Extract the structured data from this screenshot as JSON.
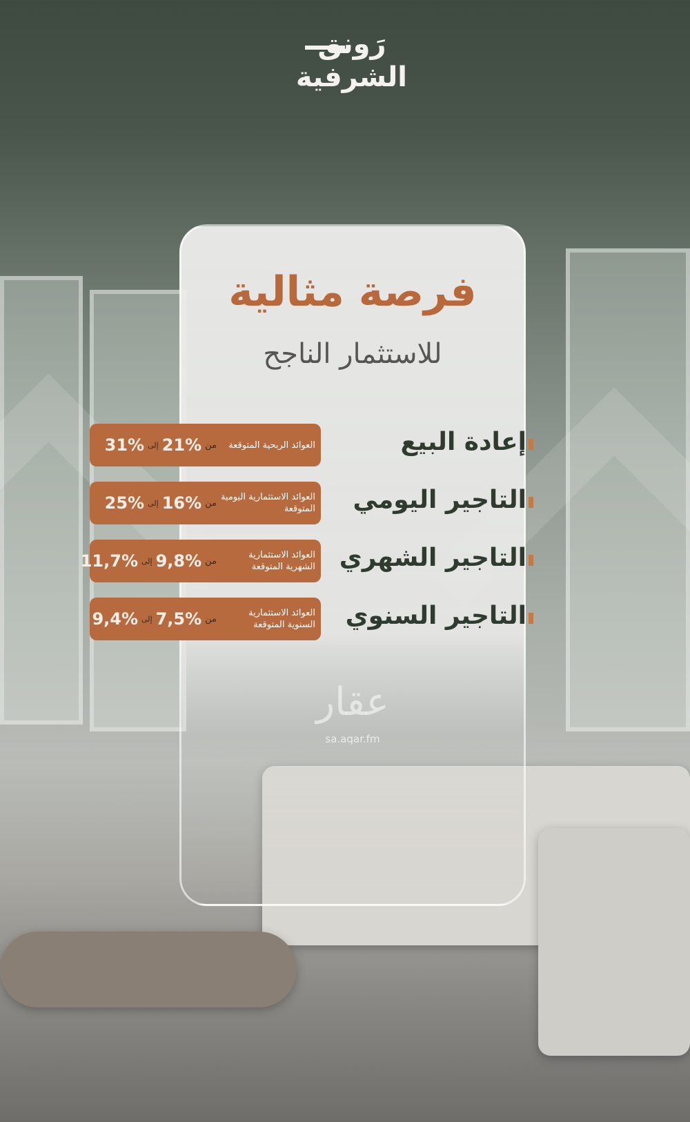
{
  "logo": {
    "line1": "رَونق",
    "line2": "الشرفية"
  },
  "headline": {
    "title": "فرصة مثالية",
    "subtitle": "للاستثمار الناجح"
  },
  "rows": [
    {
      "label": "إعادة البيع",
      "desc": "العوائد الربحية المتوقعة",
      "from_word": "من",
      "from": "21%",
      "to_word": "إلى",
      "to": "31%"
    },
    {
      "label": "التاجير اليومي",
      "desc": "العوائد الاستثمارية اليومية المتوقعة",
      "from_word": "من",
      "from": "16%",
      "to_word": "إلى",
      "to": "25%"
    },
    {
      "label": "التاجير الشهري",
      "desc": "العوائد الاستثمارية الشهرية المتوقعة",
      "from_word": "من",
      "from": "9,8%",
      "to_word": "إلى",
      "to": "11,7%"
    },
    {
      "label": "التاجير السنوي",
      "desc": "العوائد الاستثمارية السنوية المتوقعة",
      "from_word": "من",
      "from": "7,5%",
      "to_word": "إلى",
      "to": "9,4%"
    }
  ],
  "watermark": {
    "brand": "عقار",
    "url": "sa.aqar.fm"
  },
  "colors": {
    "accent": "#b86a3f",
    "title": "#b8683a",
    "label": "#2f3b2f"
  }
}
